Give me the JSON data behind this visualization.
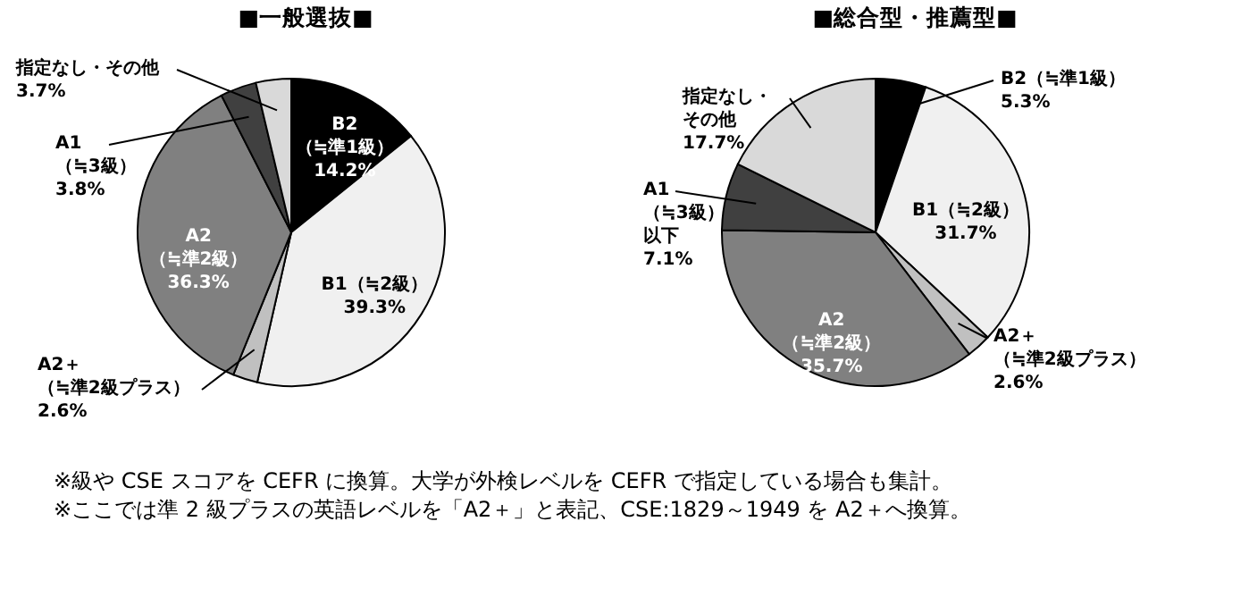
{
  "chart_data": [
    {
      "type": "pie",
      "title": "■一般選抜■",
      "categories": [
        "B2（≒準1級）",
        "B1（≒2級）",
        "A2＋（≒準2級プラス）",
        "A2（≒準2級）",
        "A1（≒3級）",
        "指定なし・その他"
      ],
      "values": [
        14.2,
        39.3,
        2.6,
        36.3,
        3.8,
        3.7
      ],
      "value_labels": [
        "14.2%",
        "39.3%",
        "2.6%",
        "36.3%",
        "3.8%",
        "3.7%"
      ],
      "colors": [
        "#000000",
        "#f0f0f0",
        "#c0c0c0",
        "#808080",
        "#404040",
        "#d9d9d9"
      ],
      "annotations": [
        "※級や CSE スコアを CEFR に換算。大学が外検レベルを CEFR で指定している場合も集計。",
        "※ここでは準 2 級プラスの英語レベルを「A2＋」と表記、CSE:1829～1949 を A2＋へ換算。"
      ]
    },
    {
      "type": "pie",
      "title": "■総合型・推薦型■",
      "categories": [
        "B2（≒準1級）",
        "B1（≒2級）",
        "A2＋（≒準2級プラス）",
        "A2（≒準2級）",
        "A1（≒3級）以下",
        "指定なし・その他"
      ],
      "values": [
        5.3,
        31.7,
        2.6,
        35.7,
        7.1,
        17.7
      ],
      "value_labels": [
        "5.3%",
        "31.7%",
        "2.6%",
        "35.7%",
        "7.1%",
        "17.7%"
      ],
      "colors": [
        "#000000",
        "#f0f0f0",
        "#c0c0c0",
        "#808080",
        "#404040",
        "#d9d9d9"
      ]
    }
  ]
}
